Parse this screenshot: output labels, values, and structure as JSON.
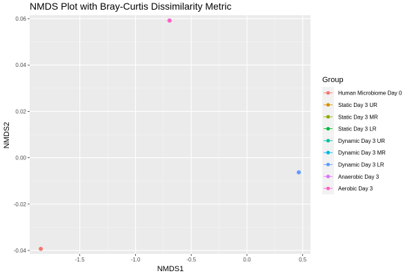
{
  "chart_data": {
    "type": "scatter",
    "title": "NMDS Plot with Bray-Curtis Dissimilarity Metric",
    "xlabel": "NMDS1",
    "ylabel": "NMDS2",
    "xlim": [
      -1.95,
      0.57
    ],
    "ylim": [
      -0.0415,
      0.0615
    ],
    "x_ticks": [
      {
        "value": -1.5,
        "label": "-1.5"
      },
      {
        "value": -1.0,
        "label": "-1.0"
      },
      {
        "value": -0.5,
        "label": "-0.5"
      },
      {
        "value": 0.0,
        "label": "0.0"
      },
      {
        "value": 0.5,
        "label": "0.5"
      }
    ],
    "y_ticks": [
      {
        "value": -0.04,
        "label": "-0.04"
      },
      {
        "value": -0.02,
        "label": "-0.02"
      },
      {
        "value": 0.0,
        "label": "0.00"
      },
      {
        "value": 0.02,
        "label": "0.02"
      },
      {
        "value": 0.04,
        "label": "0.04"
      },
      {
        "value": 0.06,
        "label": "0.06"
      }
    ],
    "grid": true,
    "legend_title": "Group",
    "legend_position": "right",
    "series": [
      {
        "name": "Human Microbiome Day 0",
        "color": "#F8766D",
        "points": [
          {
            "x": -1.85,
            "y": -0.0393
          }
        ]
      },
      {
        "name": "Static Day 3 UR",
        "color": "#D39200",
        "points": []
      },
      {
        "name": "Static Day 3 MR",
        "color": "#93AA00",
        "points": []
      },
      {
        "name": "Static Day 3 LR",
        "color": "#00BA38",
        "points": []
      },
      {
        "name": "Dynamic Day 3 UR",
        "color": "#00C19F",
        "points": []
      },
      {
        "name": "Dynamic Day 3 MR",
        "color": "#00B9E3",
        "points": []
      },
      {
        "name": "Dynamic Day 3 LR",
        "color": "#619CFF",
        "points": [
          {
            "x": 0.465,
            "y": -0.0063
          }
        ]
      },
      {
        "name": "Anaerobic Day 3",
        "color": "#DB72FB",
        "points": [
          {
            "x": -0.695,
            "y": 0.0592
          }
        ]
      },
      {
        "name": "Aerobic Day 3",
        "color": "#FF61C3",
        "points": [
          {
            "x": -0.695,
            "y": 0.0592
          }
        ]
      }
    ]
  }
}
